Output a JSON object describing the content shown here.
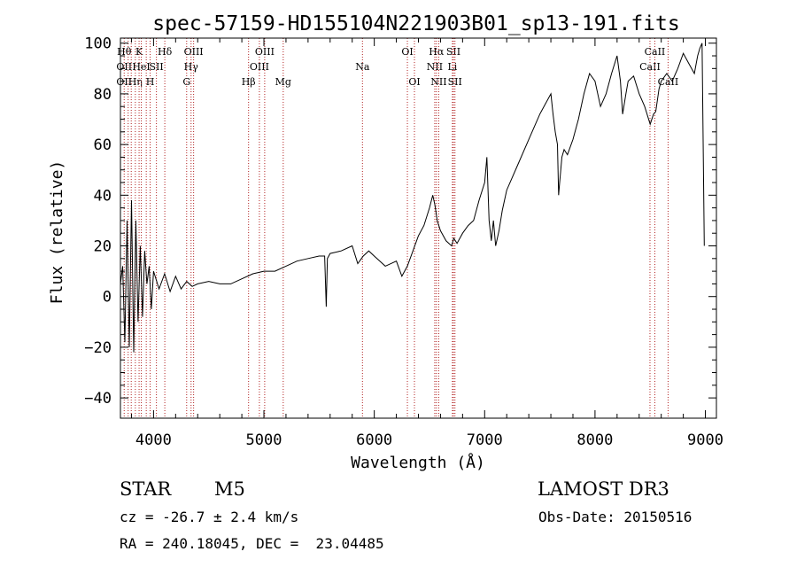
{
  "chart_data": {
    "type": "line",
    "title": "spec-57159-HD155104N221903B01_sp13-191.fits",
    "xlabel": "Wavelength (Å)",
    "ylabel": "Flux (relative)",
    "xlim": [
      3700,
      9100
    ],
    "ylim": [
      -48,
      102
    ],
    "xticks": [
      4000,
      5000,
      6000,
      7000,
      8000,
      9000
    ],
    "yticks": [
      -40,
      -20,
      0,
      20,
      40,
      60,
      80,
      100
    ],
    "series": [
      {
        "name": "flux",
        "x": [
          3700,
          3720,
          3740,
          3760,
          3780,
          3800,
          3820,
          3840,
          3860,
          3880,
          3900,
          3920,
          3940,
          3960,
          3980,
          4000,
          4050,
          4100,
          4150,
          4200,
          4250,
          4300,
          4350,
          4400,
          4500,
          4600,
          4700,
          4800,
          4900,
          5000,
          5100,
          5200,
          5300,
          5400,
          5500,
          5550,
          5565,
          5575,
          5600,
          5700,
          5800,
          5850,
          5900,
          5950,
          6000,
          6100,
          6200,
          6250,
          6300,
          6350,
          6400,
          6450,
          6500,
          6530,
          6550,
          6570,
          6600,
          6650,
          6700,
          6720,
          6750,
          6800,
          6850,
          6900,
          6950,
          7000,
          7020,
          7040,
          7060,
          7080,
          7100,
          7130,
          7160,
          7200,
          7300,
          7400,
          7500,
          7550,
          7600,
          7620,
          7640,
          7660,
          7670,
          7680,
          7700,
          7720,
          7750,
          7800,
          7850,
          7900,
          7950,
          8000,
          8050,
          8100,
          8150,
          8200,
          8230,
          8250,
          8280,
          8300,
          8350,
          8400,
          8450,
          8500,
          8530,
          8550,
          8580,
          8600,
          8650,
          8700,
          8750,
          8800,
          8850,
          8900,
          8930,
          8950,
          8970,
          8990
        ],
        "y": [
          5,
          12,
          -18,
          30,
          -20,
          38,
          -22,
          30,
          -10,
          20,
          -8,
          18,
          5,
          12,
          -5,
          10,
          3,
          9,
          2,
          8,
          3,
          6,
          4,
          5,
          6,
          5,
          5,
          7,
          9,
          10,
          10,
          12,
          14,
          15,
          16,
          16,
          -4,
          15,
          17,
          18,
          20,
          13,
          16,
          18,
          16,
          12,
          14,
          8,
          12,
          18,
          24,
          28,
          35,
          40,
          36,
          30,
          26,
          22,
          20,
          23,
          21,
          25,
          28,
          30,
          38,
          45,
          55,
          30,
          22,
          30,
          20,
          26,
          34,
          42,
          52,
          62,
          72,
          76,
          80,
          72,
          65,
          60,
          40,
          45,
          55,
          58,
          56,
          62,
          70,
          80,
          88,
          85,
          75,
          80,
          88,
          95,
          85,
          72,
          80,
          85,
          87,
          80,
          75,
          68,
          72,
          73,
          82,
          85,
          88,
          85,
          90,
          96,
          92,
          88,
          95,
          98,
          100,
          20
        ]
      }
    ],
    "lines": [
      {
        "wl": 3734,
        "labels": [
          {
            "t": "Hθ",
            "row": 1
          },
          {
            "t": "OII",
            "row": 2
          },
          {
            "t": "OII",
            "row": 3
          }
        ]
      },
      {
        "wl": 3770,
        "labels": []
      },
      {
        "wl": 3798,
        "labels": []
      },
      {
        "wl": 3835,
        "labels": [
          {
            "t": "Hη",
            "row": 3
          }
        ]
      },
      {
        "wl": 3869,
        "labels": [
          {
            "t": "K",
            "row": 1
          }
        ]
      },
      {
        "wl": 3889,
        "labels": [
          {
            "t": "HeI",
            "row": 2
          }
        ]
      },
      {
        "wl": 3934,
        "labels": []
      },
      {
        "wl": 3969,
        "labels": [
          {
            "t": "H",
            "row": 3
          }
        ]
      },
      {
        "wl": 4026,
        "labels": [
          {
            "t": "SII",
            "row": 2
          }
        ]
      },
      {
        "wl": 4102,
        "labels": [
          {
            "t": "Hδ",
            "row": 1
          }
        ]
      },
      {
        "wl": 4300,
        "labels": [
          {
            "t": "G",
            "row": 3
          }
        ]
      },
      {
        "wl": 4340,
        "labels": [
          {
            "t": "Hγ",
            "row": 2
          }
        ]
      },
      {
        "wl": 4363,
        "labels": [
          {
            "t": "OIII",
            "row": 1
          }
        ]
      },
      {
        "wl": 4861,
        "labels": [
          {
            "t": "Hβ",
            "row": 3
          }
        ]
      },
      {
        "wl": 4959,
        "labels": [
          {
            "t": "OIII",
            "row": 2
          }
        ]
      },
      {
        "wl": 5007,
        "labels": [
          {
            "t": "OIII",
            "row": 1
          }
        ]
      },
      {
        "wl": 5175,
        "labels": [
          {
            "t": "Mg",
            "row": 3
          }
        ]
      },
      {
        "wl": 5893,
        "labels": [
          {
            "t": "Na",
            "row": 2
          }
        ]
      },
      {
        "wl": 6300,
        "labels": [
          {
            "t": "OI",
            "row": 1
          }
        ]
      },
      {
        "wl": 6364,
        "labels": [
          {
            "t": "OI",
            "row": 3
          }
        ]
      },
      {
        "wl": 6548,
        "labels": [
          {
            "t": "NII",
            "row": 2
          }
        ]
      },
      {
        "wl": 6563,
        "labels": [
          {
            "t": "Hα",
            "row": 1
          }
        ]
      },
      {
        "wl": 6584,
        "labels": [
          {
            "t": "NII",
            "row": 3
          }
        ]
      },
      {
        "wl": 6708,
        "labels": [
          {
            "t": "Li",
            "row": 2
          }
        ]
      },
      {
        "wl": 6717,
        "labels": [
          {
            "t": "SII",
            "row": 1
          }
        ]
      },
      {
        "wl": 6731,
        "labels": [
          {
            "t": "SII",
            "row": 3
          }
        ]
      },
      {
        "wl": 8498,
        "labels": [
          {
            "t": "CaII",
            "row": 2
          }
        ]
      },
      {
        "wl": 8542,
        "labels": [
          {
            "t": "CaII",
            "row": 1
          }
        ]
      },
      {
        "wl": 8662,
        "labels": [
          {
            "t": "CaII",
            "row": 3
          }
        ]
      }
    ]
  },
  "info": {
    "object_class": "STAR",
    "subclass": "M5",
    "survey": "LAMOST DR3",
    "cz": "cz = -26.7 ± 2.4 km/s",
    "obs_date": "Obs-Date: 20150516",
    "coords": "RA = 240.18045, DEC =  23.04485"
  },
  "colors": {
    "axis": "#000000",
    "line": "#000000",
    "marker": "#b22222"
  }
}
